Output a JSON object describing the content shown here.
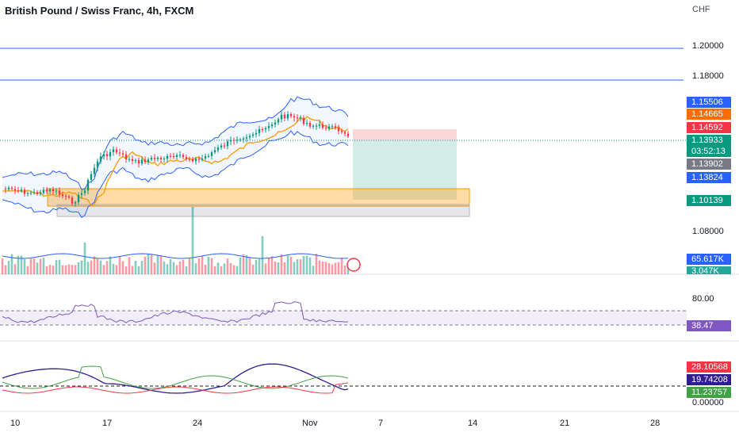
{
  "header": {
    "title": "British Pound / Swiss Franc, 4h, FXCM",
    "currency": "CHF"
  },
  "price_axis": [
    "1.20000",
    "1.18000",
    "1.08000"
  ],
  "price_tags": [
    {
      "text": "1.15506",
      "color": "#2962ff"
    },
    {
      "text": "1.14665",
      "color": "#ff6d00"
    },
    {
      "text": "1.14592",
      "color": "#f23645"
    },
    {
      "text": "1.13933",
      "color": "#089981"
    },
    {
      "text": "03:52:13",
      "color": "#089981"
    },
    {
      "text": "1.13902",
      "color": "#787b86"
    },
    {
      "text": "1.13824",
      "color": "#2962ff"
    },
    {
      "text": "1.10139",
      "color": "#089981"
    },
    {
      "text": "65.617K",
      "color": "#2962ff"
    },
    {
      "text": "3.047K",
      "color": "#26a69a"
    }
  ],
  "rsi": {
    "level_label": "80.00",
    "value": "38.47",
    "value_color": "#7e57c2"
  },
  "dmi": {
    "values": [
      {
        "text": "28.10568",
        "color": "#f23645"
      },
      {
        "text": "19.74208",
        "color": "#311b92"
      },
      {
        "text": "11.23757",
        "color": "#43a047"
      }
    ],
    "zero_label": "0.00000"
  },
  "x_axis": [
    "10",
    "17",
    "24",
    "Nov",
    "7",
    "14",
    "21",
    "28"
  ],
  "colors": {
    "up": "#089981",
    "down": "#f23645",
    "band": "#2962ff",
    "ma": "#ff9800",
    "rsi": "#7e57c2"
  }
}
